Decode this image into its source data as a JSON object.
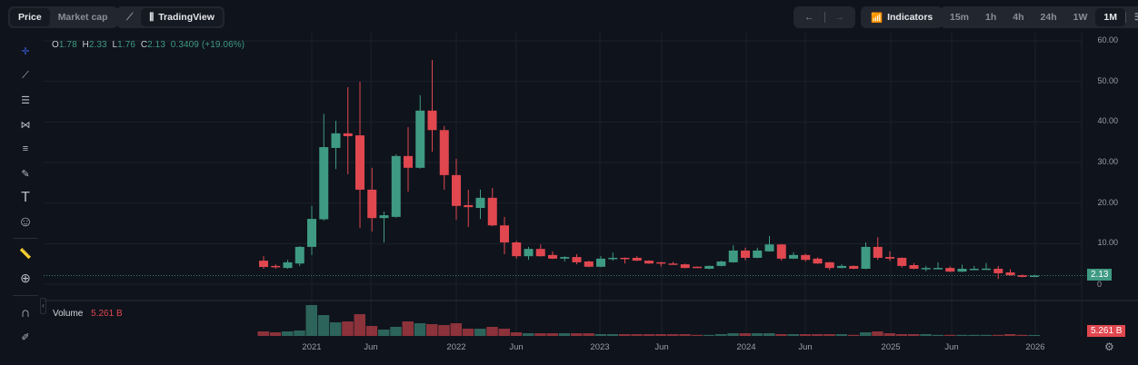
{
  "toolbar": {
    "price_label": "Price",
    "market_cap_label": "Market cap",
    "tradingview_label": "TradingView",
    "indicators_label": "Indicators",
    "intervals": [
      "15m",
      "1h",
      "4h",
      "24h",
      "1W",
      "1M"
    ],
    "active_interval": "1M"
  },
  "legend": {
    "o_label": "O",
    "o": "1.78",
    "h_label": "H",
    "h": "2.33",
    "l_label": "L",
    "l": "1.76",
    "c_label": "C",
    "c": "2.13",
    "change": "0.3409 (+19.06%)"
  },
  "volume": {
    "label": "Volume",
    "value": "5.261 B"
  },
  "price_axis": [
    "60.00",
    "50.00",
    "40.00",
    "30.00",
    "20.00",
    "10.00",
    "0"
  ],
  "last_price_tag": "2.13",
  "volume_tag": "5.261 B",
  "colors": {
    "up": "#3f9a83",
    "down": "#e0474f",
    "bg": "#0f131c"
  },
  "chart_data": {
    "type": "candlestick",
    "interval": "1M",
    "start_month": "2020-09",
    "x_ticks": [
      "2021",
      "Jun",
      "2022",
      "Jun",
      "2023",
      "Jun",
      "2024",
      "Jun",
      "2025",
      "Jun",
      "2026"
    ],
    "ylim": [
      0,
      60
    ],
    "ohlc": [
      [
        5.8,
        6.9,
        3.8,
        4.25
      ],
      [
        4.5,
        4.9,
        3.8,
        4.3
      ],
      [
        4.0,
        6.0,
        3.8,
        5.4
      ],
      [
        5.1,
        9.4,
        4.5,
        9.2
      ],
      [
        9.2,
        19.3,
        7.2,
        16.1
      ],
      [
        16,
        42,
        15.7,
        33.8
      ],
      [
        33.6,
        40.3,
        28.4,
        37.2
      ],
      [
        37.2,
        48.6,
        27.1,
        36.5
      ],
      [
        36.7,
        49.9,
        13.9,
        23.3
      ],
      [
        23.3,
        28.7,
        13,
        16.3
      ],
      [
        16.3,
        17.9,
        10.3,
        17
      ],
      [
        16.6,
        32,
        16.4,
        31.6
      ],
      [
        31.6,
        38.7,
        22.8,
        28.7
      ],
      [
        28.7,
        46.6,
        28.5,
        42.8
      ],
      [
        42.8,
        55.3,
        32.7,
        38
      ],
      [
        38,
        39,
        23.3,
        26.9
      ],
      [
        26.9,
        30.9,
        15.9,
        19.3
      ],
      [
        19.5,
        23.3,
        14.1,
        19
      ],
      [
        18.8,
        23.3,
        16.1,
        21.3
      ],
      [
        21.3,
        23.7,
        14.3,
        14.5
      ],
      [
        14.5,
        16.6,
        7.4,
        10.3
      ],
      [
        10.3,
        10.7,
        6.3,
        6.9
      ],
      [
        6.9,
        9.2,
        6.0,
        8.7
      ],
      [
        8.7,
        9.8,
        6.8,
        6.9
      ],
      [
        7.2,
        8.1,
        6.2,
        6.3
      ],
      [
        6.3,
        6.9,
        5.6,
        6.7
      ],
      [
        6.7,
        7.4,
        4.9,
        5.4
      ],
      [
        5.6,
        5.8,
        4.2,
        4.3
      ],
      [
        4.3,
        6.9,
        4.2,
        6.3
      ],
      [
        6.4,
        7.8,
        5.8,
        6.5
      ],
      [
        6.5,
        6.6,
        5.1,
        6.3
      ],
      [
        6.5,
        6.9,
        5.7,
        5.8
      ],
      [
        5.8,
        5.9,
        5.0,
        5.1
      ],
      [
        5.4,
        5.5,
        4.3,
        5.3
      ],
      [
        5.1,
        5.5,
        4.8,
        4.9
      ],
      [
        4.9,
        5.1,
        3.9,
        4.0
      ],
      [
        4.3,
        4.4,
        4.0,
        4.2
      ],
      [
        3.8,
        4.6,
        3.7,
        4.5
      ],
      [
        4.5,
        5.8,
        4.4,
        5.6
      ],
      [
        5.4,
        9.6,
        5.3,
        8.3
      ],
      [
        8.3,
        9.0,
        5.9,
        6.5
      ],
      [
        6.5,
        9.0,
        6.4,
        8.3
      ],
      [
        8.1,
        11.9,
        8.0,
        9.8
      ],
      [
        9.8,
        9.9,
        5.8,
        6.3
      ],
      [
        6.3,
        7.9,
        6.2,
        7.2
      ],
      [
        7.2,
        7.5,
        5.6,
        6.0
      ],
      [
        6.3,
        6.6,
        5.0,
        5.1
      ],
      [
        5.4,
        5.5,
        3.5,
        4.0
      ],
      [
        4.0,
        4.9,
        3.9,
        4.5
      ],
      [
        4.5,
        4.6,
        3.7,
        3.8
      ],
      [
        3.8,
        10.3,
        3.7,
        9.2
      ],
      [
        9.2,
        11.6,
        6.0,
        6.5
      ],
      [
        6.7,
        8.1,
        5.7,
        6.3
      ],
      [
        6.5,
        6.6,
        4.1,
        4.5
      ],
      [
        4.7,
        5.2,
        3.7,
        3.8
      ],
      [
        3.9,
        4.5,
        3.2,
        4.0
      ],
      [
        3.9,
        5.4,
        3.8,
        4.0
      ],
      [
        4.0,
        4.4,
        3.0,
        3.1
      ],
      [
        3.1,
        4.8,
        3.0,
        3.8
      ],
      [
        3.7,
        4.5,
        3.6,
        3.8
      ],
      [
        3.8,
        5.2,
        3.7,
        3.85
      ],
      [
        3.8,
        4.5,
        1.3,
        2.7
      ],
      [
        2.9,
        3.7,
        2.1,
        2.2
      ],
      [
        2.2,
        2.4,
        1.7,
        1.8
      ],
      [
        1.78,
        2.33,
        1.76,
        2.13
      ]
    ],
    "volume_b": [
      25,
      20,
      25,
      30,
      170,
      115,
      75,
      80,
      120,
      55,
      35,
      50,
      80,
      70,
      65,
      60,
      70,
      40,
      40,
      50,
      40,
      20,
      15,
      15,
      15,
      15,
      15,
      15,
      10,
      10,
      10,
      10,
      10,
      10,
      10,
      10,
      6,
      6,
      10,
      15,
      15,
      15,
      15,
      10,
      10,
      10,
      10,
      10,
      10,
      6,
      20,
      25,
      15,
      10,
      10,
      10,
      6,
      6,
      6,
      6,
      6,
      6,
      10,
      6,
      5.261
    ]
  }
}
